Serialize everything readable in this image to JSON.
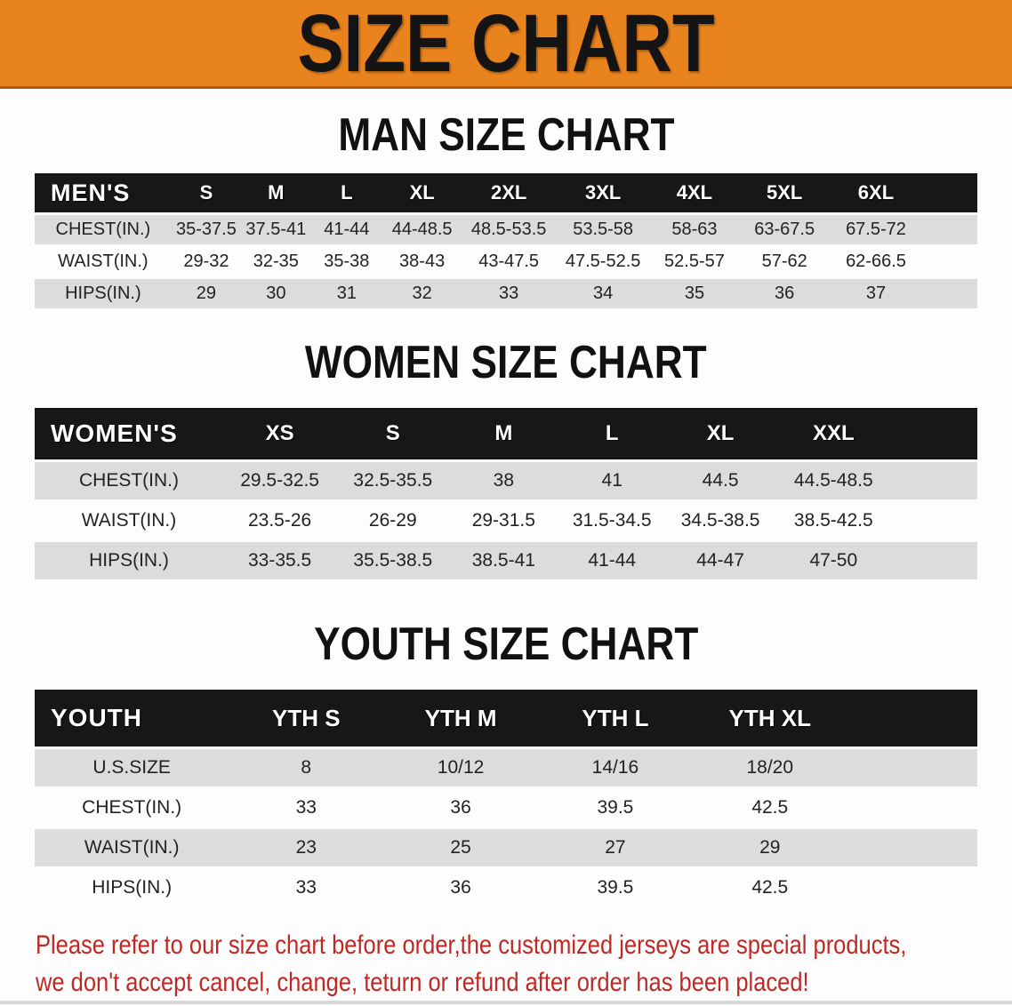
{
  "banner": {
    "title": "SIZE CHART",
    "background_color": "#e8831e",
    "text_color": "#141414"
  },
  "colors": {
    "table_header_bar": "#171717",
    "table_row_shade": "#dcdcdc",
    "note_red": "#bf2823"
  },
  "men_chart": {
    "title": "MAN SIZE CHART",
    "table": {
      "header": [
        "MEN'S",
        "S",
        "M",
        "L",
        "XL",
        "2XL",
        "3XL",
        "4XL",
        "5XL",
        "6XL"
      ],
      "rows": [
        [
          "CHEST(IN.)",
          "35-37.5",
          "37.5-41",
          "41-44",
          "44-48.5",
          "48.5-53.5",
          "53.5-58",
          "58-63",
          "63-67.5",
          "67.5-72"
        ],
        [
          "WAIST(IN.)",
          "29-32",
          "32-35",
          "35-38",
          "38-43",
          "43-47.5",
          "47.5-52.5",
          "52.5-57",
          "57-62",
          "62-66.5"
        ],
        [
          "HIPS(IN.)",
          "29",
          "30",
          "31",
          "32",
          "33",
          "34",
          "35",
          "36",
          "37"
        ]
      ]
    }
  },
  "women_chart": {
    "title": "WOMEN SIZE CHART",
    "table": {
      "header": [
        "WOMEN'S",
        "XS",
        "S",
        "M",
        "L",
        "XL",
        "XXL"
      ],
      "rows": [
        [
          "CHEST(IN.)",
          "29.5-32.5",
          "32.5-35.5",
          "38",
          "41",
          "44.5",
          "44.5-48.5"
        ],
        [
          "WAIST(IN.)",
          "23.5-26",
          "26-29",
          "29-31.5",
          "31.5-34.5",
          "34.5-38.5",
          "38.5-42.5"
        ],
        [
          "HIPS(IN.)",
          "33-35.5",
          "35.5-38.5",
          "38.5-41",
          "41-44",
          "44-47",
          "47-50"
        ]
      ]
    }
  },
  "youth_chart": {
    "title": "YOUTH SIZE CHART",
    "table": {
      "header": [
        "YOUTH",
        "YTH S",
        "YTH M",
        "YTH L",
        "YTH XL"
      ],
      "rows": [
        [
          "U.S.SIZE",
          "8",
          "10/12",
          "14/16",
          "18/20"
        ],
        [
          "CHEST(IN.)",
          "33",
          "36",
          "39.5",
          "42.5"
        ],
        [
          "WAIST(IN.)",
          "23",
          "25",
          "27",
          "29"
        ],
        [
          "HIPS(IN.)",
          "33",
          "36",
          "39.5",
          "42.5"
        ]
      ]
    }
  },
  "footer": {
    "lines": [
      "Please refer to our size chart before order,the customized jerseys are special products,",
      "we don't accept cancel, change, teturn or refund after order has been placed!"
    ]
  }
}
